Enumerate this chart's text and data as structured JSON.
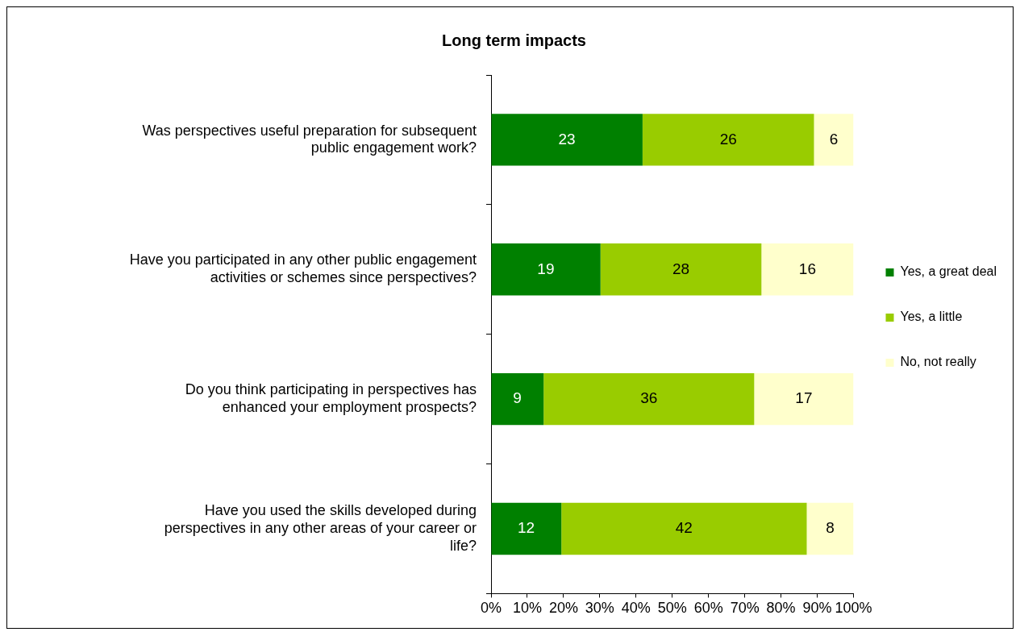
{
  "chart_data": {
    "type": "bar",
    "title": "Long term impacts",
    "orientation": "horizontal",
    "stacked": true,
    "categories": [
      "Was perspectives useful preparation for subsequent public engagement work?",
      "Have you participated in any other public engagement activities or schemes since perspectives?",
      "Do you think participating in perspectives has enhanced your employment prospects?",
      "Have you used the skills developed during perspectives in any other areas of your career or life?"
    ],
    "series": [
      {
        "name": "Yes, a great deal",
        "color": "#008000",
        "values": [
          41.8,
          30.2,
          14.5,
          19.4
        ]
      },
      {
        "name": "Yes, a little",
        "color": "#99cc00",
        "values": [
          47.3,
          44.4,
          58.1,
          67.7
        ]
      },
      {
        "name": "No, not really",
        "color": "#ffffcc",
        "values": [
          10.9,
          25.4,
          27.4,
          12.9
        ]
      }
    ],
    "annotations": [
      "23",
      "26",
      "6",
      "19",
      "28",
      "16",
      "9",
      "36",
      "17",
      "12",
      "42",
      "8"
    ],
    "xlim": [
      0,
      100
    ],
    "xticks": [
      {
        "value": 0,
        "label": "0%"
      },
      {
        "value": 10,
        "label": "10%"
      },
      {
        "value": 20,
        "label": "20%"
      },
      {
        "value": 30,
        "label": "30%"
      },
      {
        "value": 40,
        "label": "40%"
      },
      {
        "value": 50,
        "label": "50%"
      },
      {
        "value": 60,
        "label": "60%"
      },
      {
        "value": 70,
        "label": "70%"
      },
      {
        "value": 80,
        "label": "80%"
      },
      {
        "value": 90,
        "label": "90%"
      },
      {
        "value": 100,
        "label": "100%"
      }
    ],
    "grid": false,
    "legend": "right"
  }
}
